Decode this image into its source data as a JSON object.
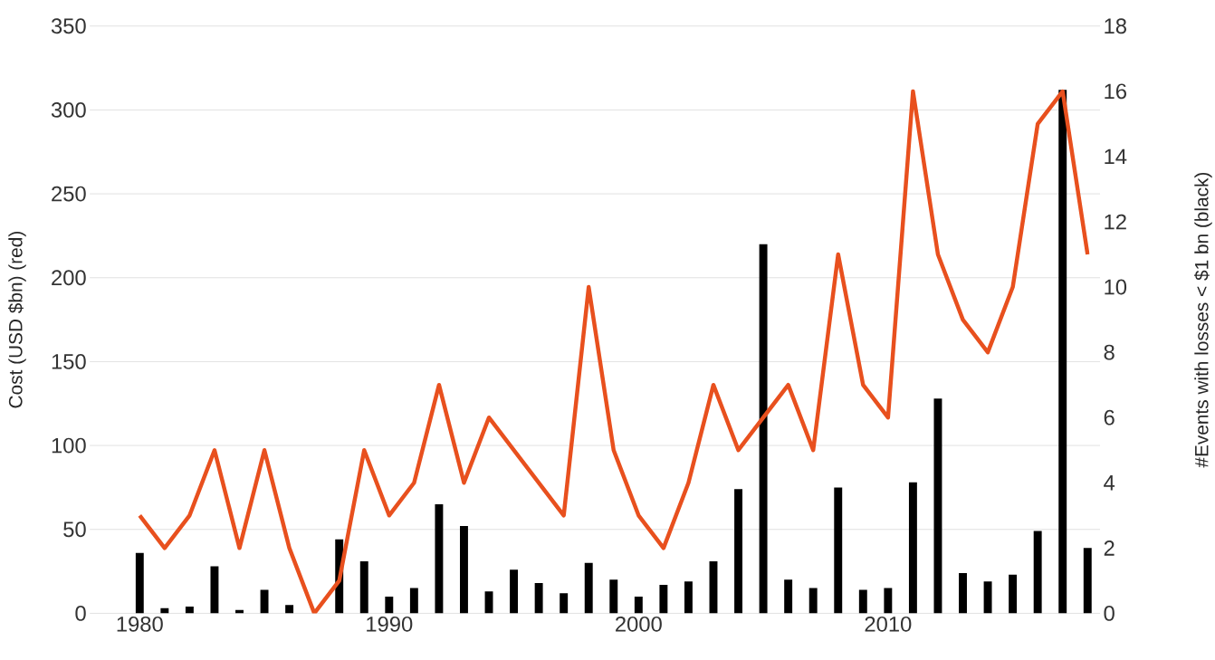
{
  "chart_data": {
    "type": "bar",
    "ylabel": "Cost (USD $bn) (red)",
    "y2label": "#Events with losses < $1 bn (black)",
    "x": [
      1980,
      1981,
      1982,
      1983,
      1984,
      1985,
      1986,
      1987,
      1988,
      1989,
      1990,
      1991,
      1992,
      1993,
      1994,
      1995,
      1996,
      1997,
      1998,
      1999,
      2000,
      2001,
      2002,
      2003,
      2004,
      2005,
      2006,
      2007,
      2008,
      2009,
      2010,
      2011,
      2012,
      2013,
      2014,
      2015,
      2016,
      2017,
      2018
    ],
    "series": [
      {
        "color": "#000000",
        "values": [
          36,
          3,
          4,
          28,
          2,
          14,
          5,
          0,
          44,
          31,
          10,
          15,
          65,
          52,
          13,
          26,
          18,
          12,
          30,
          20,
          10,
          17,
          19,
          31,
          74,
          220,
          20,
          15,
          75,
          14,
          15,
          78,
          128,
          24,
          19,
          23,
          49,
          312,
          39
        ]
      },
      {
        "type": "line",
        "axis": "y2",
        "color": "#e8501e",
        "values": [
          3,
          2,
          3,
          5,
          2,
          5,
          2,
          0,
          1,
          5,
          3,
          4,
          7,
          4,
          6,
          5,
          4,
          3,
          10,
          5,
          3,
          2,
          4,
          7,
          5,
          6,
          7,
          5,
          11,
          7,
          6,
          16,
          11,
          9,
          8,
          10,
          15,
          16,
          11
        ]
      }
    ],
    "xlim": [
      1978,
      2018.5
    ],
    "xticks": [
      1980,
      1990,
      2000,
      2010
    ],
    "ylim": [
      0,
      350
    ],
    "yticks": [
      0,
      50,
      100,
      150,
      200,
      250,
      300,
      350
    ],
    "y2lim": [
      0,
      18
    ],
    "y2ticks": [
      0,
      2,
      4,
      6,
      8,
      10,
      12,
      14,
      16,
      18
    ],
    "grid": "y",
    "marker": "none",
    "line_style": "solid"
  }
}
